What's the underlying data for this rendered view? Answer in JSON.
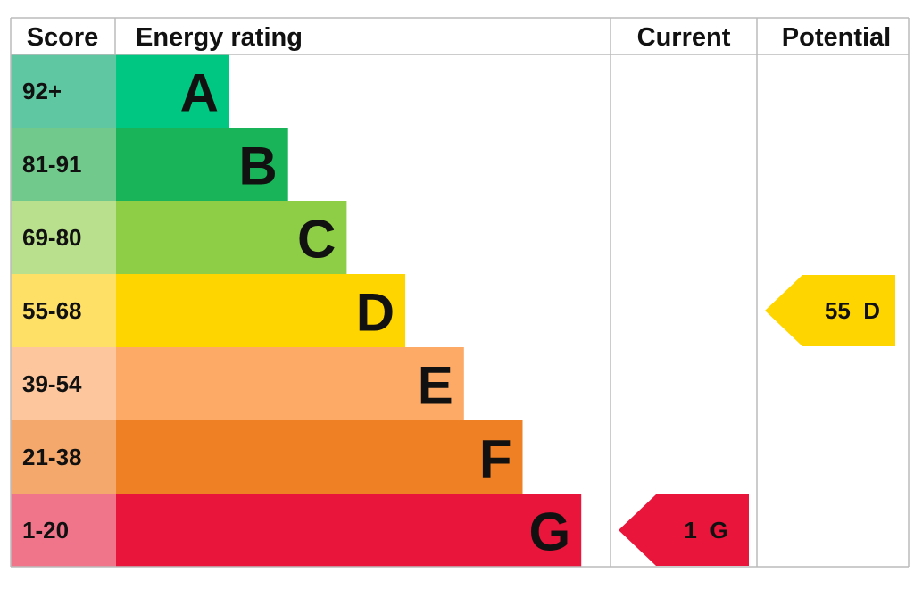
{
  "header": {
    "score": "Score",
    "rating": "Energy rating",
    "current": "Current",
    "potential": "Potential"
  },
  "bands": [
    {
      "score": "92+",
      "letter": "A",
      "color": "#00c781",
      "score_color": "#5fc8a2"
    },
    {
      "score": "81-91",
      "letter": "B",
      "color": "#19b459",
      "score_color": "#72c98c"
    },
    {
      "score": "69-80",
      "letter": "C",
      "color": "#8dce46",
      "score_color": "#b9e08c"
    },
    {
      "score": "55-68",
      "letter": "D",
      "color": "#ffd500",
      "score_color": "#ffe066"
    },
    {
      "score": "39-54",
      "letter": "E",
      "color": "#fcaa65",
      "score_color": "#fdc69d"
    },
    {
      "score": "21-38",
      "letter": "F",
      "color": "#ef8023",
      "score_color": "#f4a86c"
    },
    {
      "score": "1-20",
      "letter": "G",
      "color": "#e9153b",
      "score_color": "#f0758b"
    }
  ],
  "current": {
    "score": 1,
    "band": "G"
  },
  "potential": {
    "score": 55,
    "band": "D"
  }
}
